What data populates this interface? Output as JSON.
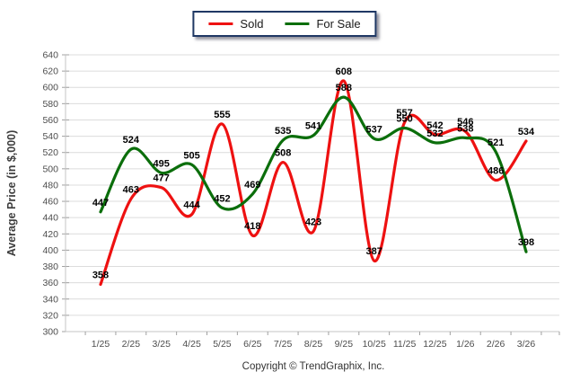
{
  "legend": {
    "position": "top-center",
    "border_color": "#1f3864"
  },
  "footer": {
    "copyright": "Copyright © TrendGraphix, Inc."
  },
  "chart_data": {
    "type": "line",
    "smooth": true,
    "data_labels": true,
    "grid": true,
    "legend_position": "top-center",
    "ylabel": "Average Price (in $,000)",
    "xlabel": "",
    "ylim": [
      300,
      640
    ],
    "ytick_step": 20,
    "categories": [
      "1/25",
      "2/25",
      "3/25",
      "4/25",
      "5/25",
      "6/25",
      "7/25",
      "8/25",
      "9/25",
      "10/25",
      "11/25",
      "12/25",
      "1/26",
      "2/26",
      "3/26"
    ],
    "series": [
      {
        "name": "Sold",
        "color": "#ee1111",
        "values": [
          358,
          463,
          477,
          444,
          555,
          418,
          508,
          423,
          608,
          387,
          557,
          542,
          546,
          486,
          534
        ]
      },
      {
        "name": "For Sale",
        "color": "#0b6e0b",
        "values": [
          447,
          524,
          495,
          505,
          452,
          469,
          535,
          541,
          588,
          537,
          550,
          532,
          538,
          521,
          398
        ]
      }
    ],
    "colors": {
      "grid": "#dcdcdc",
      "axis": "#c4c4c4",
      "tick": "#a0a0a0",
      "tick_label": "#4d4d4d"
    }
  }
}
